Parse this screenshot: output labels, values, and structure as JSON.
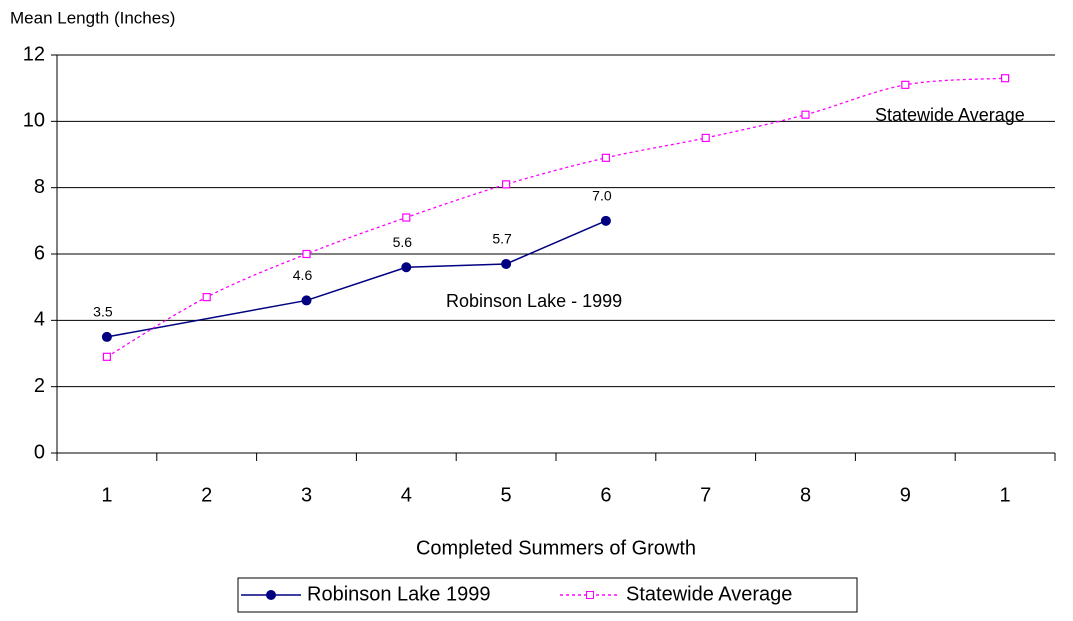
{
  "chart_data": {
    "type": "line",
    "y_label": "Mean Length (Inches)",
    "x_label": "Completed Summers of Growth",
    "categories": [
      "1",
      "2",
      "3",
      "4",
      "5",
      "6",
      "7",
      "8",
      "9",
      "1"
    ],
    "series": [
      {
        "name": "Robinson Lake 1999",
        "color": "#000080",
        "marker": "circle",
        "dash": "solid",
        "values": [
          3.5,
          null,
          4.6,
          5.6,
          5.7,
          7.0,
          null,
          null,
          null,
          null
        ],
        "value_labels": [
          "3.5",
          null,
          "4.6",
          "5.6",
          "5.7",
          "7.0",
          null,
          null,
          null,
          null
        ]
      },
      {
        "name": "Statewide Average",
        "color": "#ff00ff",
        "marker": "square",
        "dash": "dotted",
        "values": [
          2.9,
          4.7,
          6.0,
          7.1,
          8.1,
          8.9,
          9.5,
          10.2,
          11.1,
          11.3
        ]
      }
    ],
    "annotations": [
      "Statewide Average",
      "Robinson Lake - 1999"
    ],
    "ylim": [
      0,
      12
    ],
    "yticks": [
      0,
      2,
      4,
      6,
      8,
      10,
      12
    ],
    "grid": true,
    "legend": "bottom"
  }
}
